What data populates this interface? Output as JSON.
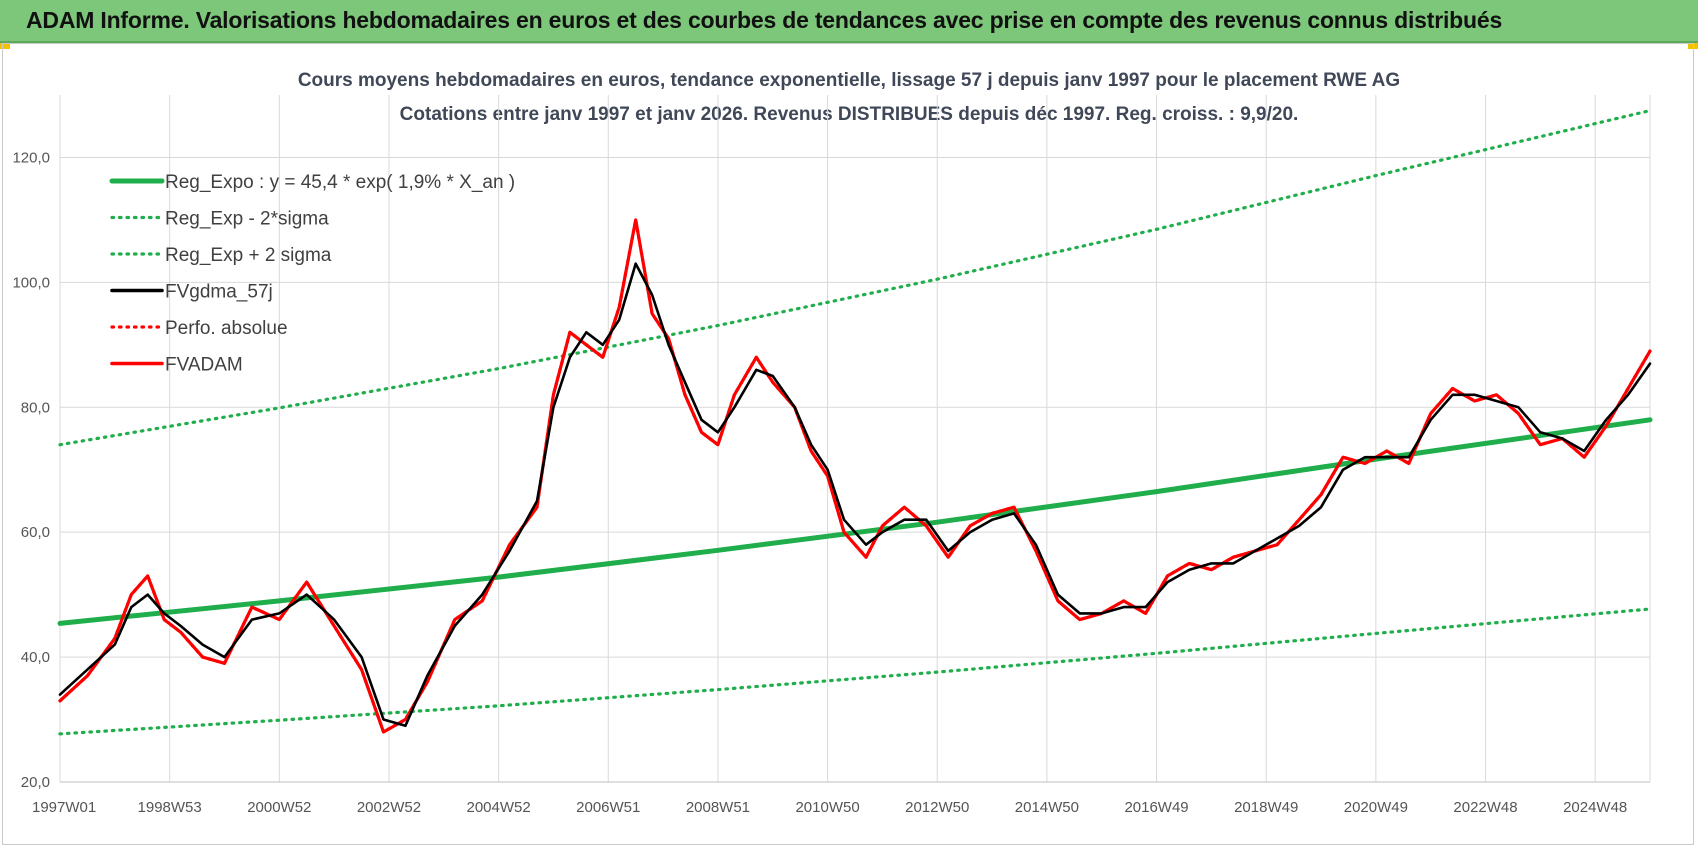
{
  "header": {
    "title": "ADAM Informe. Valorisations hebdomadaires en euros et des courbes de tendances avec prise en compte des revenus connus distribués"
  },
  "colors": {
    "banner": "#7dc77a",
    "reg_expo": "#1fae4b",
    "reg_band": "#1fae4b",
    "fvgdma": "#000000",
    "perfo": "#ff0000",
    "fvadam": "#ff0000",
    "grid": "#d9d9d9"
  },
  "chart_data": {
    "type": "line",
    "title": "Cours moyens hebdomadaires en euros, tendance exponentielle, lissage 57 j depuis janv 1997 pour le placement RWE AG",
    "subtitle": "Cotations entre janv 1997 et janv 2026. Revenus DISTRIBUES depuis déc 1997. Reg. croiss. : 9,9/20.",
    "xlabel": "",
    "ylabel": "",
    "xlim": [
      1997.0,
      2026.0
    ],
    "ylim": [
      20,
      130
    ],
    "y_ticks": [
      20,
      40,
      60,
      80,
      100,
      120
    ],
    "y_tick_labels": [
      "20,0",
      "40,0",
      "60,0",
      "80,0",
      "100,0",
      "120,0"
    ],
    "x_ticks": [
      1997.0,
      1999.0,
      2001.0,
      2003.0,
      2005.0,
      2007.0,
      2009.0,
      2011.0,
      2013.0,
      2015.0,
      2017.0,
      2019.0,
      2021.0,
      2023.0,
      2025.0
    ],
    "x_tick_labels": [
      "1997W01",
      "1998W53",
      "2000W52",
      "2002W52",
      "2004W52",
      "2006W51",
      "2008W51",
      "2010W50",
      "2012W50",
      "2014W50",
      "2016W49",
      "2018W49",
      "2020W49",
      "2022W48",
      "2024W48"
    ],
    "grid": true,
    "legend_position": "top-left",
    "series": [
      {
        "name": "Reg_Expo : y = 45,4 * exp( 1,9% *  X_an )",
        "style": "solid-thick",
        "color": "#1fae4b",
        "x": [
          1997.0,
          2001.0,
          2005.0,
          2009.0,
          2013.0,
          2017.0,
          2021.0,
          2026.0
        ],
        "values": [
          45.4,
          49.0,
          52.8,
          57.1,
          61.6,
          66.5,
          71.7,
          78.0
        ]
      },
      {
        "name": "Reg_Exp - 2*sigma",
        "style": "dotted",
        "color": "#1fae4b",
        "x": [
          1997.0,
          2001.0,
          2005.0,
          2009.0,
          2013.0,
          2017.0,
          2021.0,
          2026.0
        ],
        "values": [
          27.7,
          29.9,
          32.2,
          34.8,
          37.6,
          40.6,
          43.8,
          47.7
        ]
      },
      {
        "name": "Reg_Exp + 2 sigma",
        "style": "dotted",
        "color": "#1fae4b",
        "x": [
          1997.0,
          2001.0,
          2005.0,
          2009.0,
          2013.0,
          2017.0,
          2021.0,
          2026.0
        ],
        "values": [
          74.0,
          79.9,
          86.2,
          93.1,
          100.5,
          108.5,
          117.1,
          127.5
        ]
      },
      {
        "name": "FVgdma_57j",
        "style": "solid",
        "color": "#000000",
        "x": [
          1997.0,
          1997.5,
          1998.0,
          1998.3,
          1998.6,
          1998.9,
          1999.2,
          1999.6,
          2000.0,
          2000.5,
          2001.0,
          2001.5,
          2002.0,
          2002.5,
          2002.9,
          2003.3,
          2003.7,
          2004.2,
          2004.7,
          2005.2,
          2005.7,
          2006.0,
          2006.3,
          2006.6,
          2006.9,
          2007.2,
          2007.5,
          2007.8,
          2008.1,
          2008.4,
          2008.7,
          2009.0,
          2009.3,
          2009.7,
          2010.0,
          2010.4,
          2010.7,
          2011.0,
          2011.3,
          2011.7,
          2012.0,
          2012.4,
          2012.8,
          2013.2,
          2013.6,
          2014.0,
          2014.4,
          2014.8,
          2015.2,
          2015.6,
          2016.0,
          2016.4,
          2016.8,
          2017.2,
          2017.6,
          2018.0,
          2018.4,
          2018.8,
          2019.2,
          2019.6,
          2020.0,
          2020.4,
          2020.8,
          2021.2,
          2021.6,
          2022.0,
          2022.4,
          2022.8,
          2023.2,
          2023.6,
          2024.0,
          2024.4,
          2024.8,
          2025.2,
          2025.6,
          2026.0
        ],
        "values": [
          34,
          38,
          42,
          48,
          50,
          47,
          45,
          42,
          40,
          46,
          47,
          50,
          46,
          40,
          30,
          29,
          37,
          45,
          50,
          57,
          65,
          80,
          88,
          92,
          90,
          94,
          103,
          98,
          90,
          84,
          78,
          76,
          80,
          86,
          85,
          80,
          74,
          70,
          62,
          58,
          60,
          62,
          62,
          57,
          60,
          62,
          63,
          58,
          50,
          47,
          47,
          48,
          48,
          52,
          54,
          55,
          55,
          57,
          59,
          61,
          64,
          70,
          72,
          72,
          72,
          78,
          82,
          82,
          81,
          80,
          76,
          75,
          73,
          78,
          82,
          87
        ]
      },
      {
        "name": "Perfo. absolue",
        "style": "dotted",
        "color": "#ff0000",
        "x": [
          1997.0,
          1997.5,
          1998.0,
          1998.3,
          1998.6,
          1998.9,
          1999.2,
          1999.6,
          2000.0,
          2000.5,
          2001.0,
          2001.5,
          2002.0,
          2002.5,
          2002.9,
          2003.3,
          2003.7,
          2004.2,
          2004.7,
          2005.2,
          2005.7,
          2006.0,
          2006.3,
          2006.6,
          2006.9,
          2007.2,
          2007.5,
          2007.8,
          2008.1,
          2008.4,
          2008.7,
          2009.0,
          2009.3,
          2009.7,
          2010.0,
          2010.4,
          2010.7,
          2011.0,
          2011.3,
          2011.7,
          2012.0,
          2012.4,
          2012.8,
          2013.2,
          2013.6,
          2014.0,
          2014.4,
          2014.8,
          2015.2,
          2015.6,
          2016.0,
          2016.4,
          2016.8,
          2017.2,
          2017.6,
          2018.0,
          2018.4,
          2018.8,
          2019.2,
          2019.6,
          2020.0,
          2020.4,
          2020.8,
          2021.2,
          2021.6,
          2022.0,
          2022.4,
          2022.8,
          2023.2,
          2023.6,
          2024.0,
          2024.4,
          2024.8,
          2025.2,
          2025.6,
          2026.0
        ],
        "values": [
          33,
          37,
          43,
          50,
          53,
          46,
          44,
          40,
          39,
          48,
          46,
          52,
          45,
          38,
          28,
          30,
          36,
          46,
          49,
          58,
          64,
          82,
          92,
          90,
          88,
          96,
          110,
          95,
          91,
          82,
          76,
          74,
          82,
          88,
          84,
          80,
          73,
          69,
          60,
          56,
          61,
          64,
          61,
          56,
          61,
          63,
          64,
          57,
          49,
          46,
          47,
          49,
          47,
          53,
          55,
          54,
          56,
          57,
          58,
          62,
          66,
          72,
          71,
          73,
          71,
          79,
          83,
          81,
          82,
          79,
          74,
          75,
          72,
          77,
          83,
          89
        ]
      },
      {
        "name": "FVADAM",
        "style": "solid-thick",
        "color": "#ff0000",
        "x": [
          1997.0,
          1997.5,
          1998.0,
          1998.3,
          1998.6,
          1998.9,
          1999.2,
          1999.6,
          2000.0,
          2000.5,
          2001.0,
          2001.5,
          2002.0,
          2002.5,
          2002.9,
          2003.3,
          2003.7,
          2004.2,
          2004.7,
          2005.2,
          2005.7,
          2006.0,
          2006.3,
          2006.6,
          2006.9,
          2007.2,
          2007.5,
          2007.8,
          2008.1,
          2008.4,
          2008.7,
          2009.0,
          2009.3,
          2009.7,
          2010.0,
          2010.4,
          2010.7,
          2011.0,
          2011.3,
          2011.7,
          2012.0,
          2012.4,
          2012.8,
          2013.2,
          2013.6,
          2014.0,
          2014.4,
          2014.8,
          2015.2,
          2015.6,
          2016.0,
          2016.4,
          2016.8,
          2017.2,
          2017.6,
          2018.0,
          2018.4,
          2018.8,
          2019.2,
          2019.6,
          2020.0,
          2020.4,
          2020.8,
          2021.2,
          2021.6,
          2022.0,
          2022.4,
          2022.8,
          2023.2,
          2023.6,
          2024.0,
          2024.4,
          2024.8,
          2025.2,
          2025.6,
          2026.0
        ],
        "values": [
          33,
          37,
          43,
          50,
          53,
          46,
          44,
          40,
          39,
          48,
          46,
          52,
          45,
          38,
          28,
          30,
          36,
          46,
          49,
          58,
          64,
          82,
          92,
          90,
          88,
          96,
          110,
          95,
          91,
          82,
          76,
          74,
          82,
          88,
          84,
          80,
          73,
          69,
          60,
          56,
          61,
          64,
          61,
          56,
          61,
          63,
          64,
          57,
          49,
          46,
          47,
          49,
          47,
          53,
          55,
          54,
          56,
          57,
          58,
          62,
          66,
          72,
          71,
          73,
          71,
          79,
          83,
          81,
          82,
          79,
          74,
          75,
          72,
          77,
          83,
          89
        ]
      }
    ]
  }
}
